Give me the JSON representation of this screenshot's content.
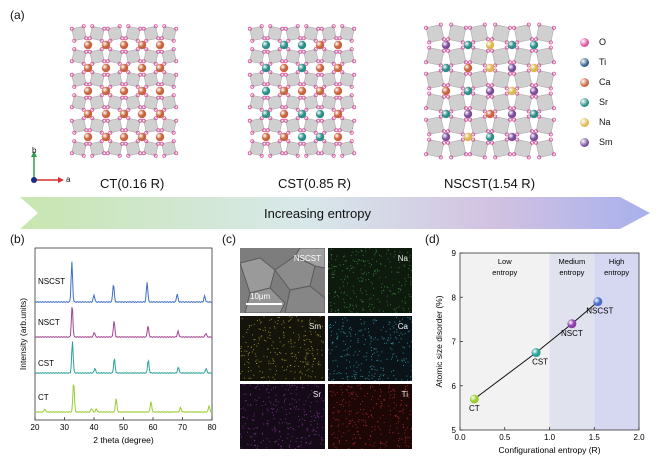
{
  "panels": {
    "a": "(a)",
    "b": "(b)",
    "c": "(c)",
    "d": "(d)"
  },
  "structures": [
    {
      "label": "CT(0.16 R)",
      "cations": [
        "Ca"
      ]
    },
    {
      "label": "CST(0.85 R)",
      "cations": [
        "Ca",
        "Sr"
      ]
    },
    {
      "label": "NSCST(1.54 R)",
      "cations": [
        "Na",
        "Sm",
        "Ca",
        "Sr"
      ]
    }
  ],
  "legend": [
    {
      "name": "O",
      "color": "#d94f9e"
    },
    {
      "name": "Ti",
      "color": "#2f5f8a"
    },
    {
      "name": "Ca",
      "color": "#c8643c"
    },
    {
      "name": "Sr",
      "color": "#2a8f86"
    },
    {
      "name": "Na",
      "color": "#d9b94e"
    },
    {
      "name": "Sm",
      "color": "#7a4d9a"
    }
  ],
  "axes_indicator": {
    "b": "b",
    "a": "a"
  },
  "arrow_text": "Increasing entropy",
  "xrd": {
    "xlabel": "2 theta (degree)",
    "ylabel": "Intensity (arb.units)",
    "xticks": [
      "20",
      "30",
      "40",
      "50",
      "60",
      "70",
      "80"
    ],
    "xrange": [
      20,
      80
    ],
    "series": [
      {
        "name": "NSCST",
        "color": "#3f6fc2",
        "peaks": [
          {
            "x": 32.5,
            "h": 1.0
          },
          {
            "x": 40.0,
            "h": 0.18
          },
          {
            "x": 46.6,
            "h": 0.45
          },
          {
            "x": 58.0,
            "h": 0.5
          },
          {
            "x": 68.2,
            "h": 0.2
          },
          {
            "x": 77.5,
            "h": 0.15
          }
        ]
      },
      {
        "name": "NSCT",
        "color": "#a0468e",
        "peaks": [
          {
            "x": 32.6,
            "h": 1.0
          },
          {
            "x": 40.1,
            "h": 0.15
          },
          {
            "x": 46.8,
            "h": 0.5
          },
          {
            "x": 58.3,
            "h": 0.35
          },
          {
            "x": 68.5,
            "h": 0.18
          },
          {
            "x": 77.9,
            "h": 0.12
          }
        ]
      },
      {
        "name": "CST",
        "color": "#2aa39a",
        "peaks": [
          {
            "x": 32.7,
            "h": 1.0
          },
          {
            "x": 40.3,
            "h": 0.15
          },
          {
            "x": 46.9,
            "h": 0.45
          },
          {
            "x": 58.4,
            "h": 0.4
          },
          {
            "x": 68.6,
            "h": 0.18
          },
          {
            "x": 78.0,
            "h": 0.14
          }
        ]
      },
      {
        "name": "CT",
        "color": "#9acd32",
        "peaks": [
          {
            "x": 23.3,
            "h": 0.1
          },
          {
            "x": 33.1,
            "h": 1.0
          },
          {
            "x": 39.2,
            "h": 0.12
          },
          {
            "x": 40.8,
            "h": 0.1
          },
          {
            "x": 47.5,
            "h": 0.45
          },
          {
            "x": 59.3,
            "h": 0.35
          },
          {
            "x": 69.3,
            "h": 0.15
          },
          {
            "x": 79.0,
            "h": 0.2
          }
        ]
      }
    ]
  },
  "eds": {
    "sem_label": "NSCST",
    "scalebar": "10μm",
    "maps": [
      {
        "name": "Na",
        "color": "#3c8c3c"
      },
      {
        "name": "Sm",
        "color": "#b0a030"
      },
      {
        "name": "Ca",
        "color": "#3aa0b0"
      },
      {
        "name": "Sr",
        "color": "#8c3c9c"
      },
      {
        "name": "Ti",
        "color": "#c03030"
      }
    ]
  },
  "chart_data": {
    "type": "scatter",
    "title": "",
    "xlabel": "Configurational entropy (R)",
    "ylabel": "Atomic size disorder (%)",
    "xlim": [
      0,
      2.0
    ],
    "ylim": [
      5,
      9
    ],
    "xticks": [
      "0.0",
      "0.5",
      "1.0",
      "1.5",
      "2.0"
    ],
    "yticks": [
      "5",
      "6",
      "7",
      "8",
      "9"
    ],
    "regions": [
      {
        "label": "Low entropy",
        "from": 0,
        "to": 1.0,
        "color": "#f2f2f2"
      },
      {
        "label": "Medium entropy",
        "from": 1.0,
        "to": 1.5,
        "color": "#e0e2ee"
      },
      {
        "label": "High entropy",
        "from": 1.5,
        "to": 2.0,
        "color": "#d6d8f2"
      }
    ],
    "points": [
      {
        "name": "CT",
        "x": 0.16,
        "y": 5.7,
        "color": "#9acd32"
      },
      {
        "name": "CST",
        "x": 0.85,
        "y": 6.75,
        "color": "#2aa39a"
      },
      {
        "name": "NSCT",
        "x": 1.25,
        "y": 7.4,
        "color": "#8e3ea8"
      },
      {
        "name": "NSCST",
        "x": 1.54,
        "y": 7.9,
        "color": "#4a6fd0"
      }
    ]
  }
}
